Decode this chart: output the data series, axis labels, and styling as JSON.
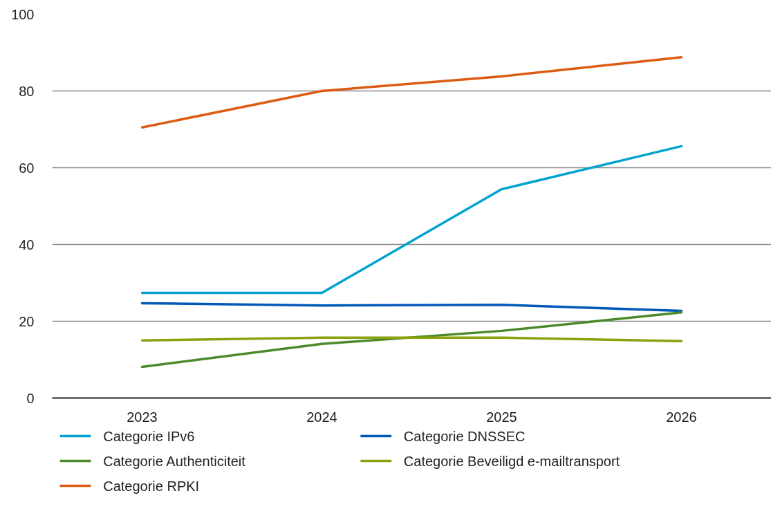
{
  "chart_data": {
    "type": "line",
    "categories": [
      "2023",
      "2024",
      "2025",
      "2026"
    ],
    "series": [
      {
        "name": "Categorie IPv6",
        "color": "#00a3d0",
        "values": [
          27.4,
          27.4,
          54.4,
          65.6
        ]
      },
      {
        "name": "Categorie DNSSEC",
        "color": "#0059b8",
        "values": [
          24.7,
          24.1,
          24.3,
          22.7
        ]
      },
      {
        "name": "Categorie Authenticiteit",
        "color": "#4a8a2a",
        "values": [
          8.1,
          14.1,
          17.5,
          22.3
        ]
      },
      {
        "name": "Categorie Beveiligd e-mailtransport",
        "color": "#8ba20e",
        "values": [
          15.0,
          15.7,
          15.7,
          14.8
        ]
      },
      {
        "name": "Categorie RPKI",
        "color": "#dd5c14",
        "values": [
          70.5,
          80,
          83.8,
          88.8
        ]
      }
    ],
    "ylim": [
      0,
      100
    ],
    "yticks": [
      0,
      20,
      40,
      60,
      80,
      100
    ],
    "grid": "y",
    "legend": "bottom",
    "marker": "none",
    "line_style": "solid"
  }
}
